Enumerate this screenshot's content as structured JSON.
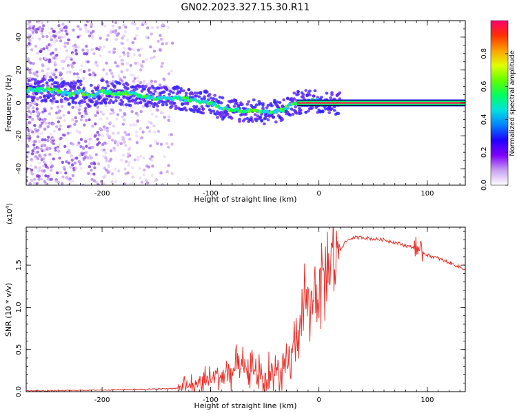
{
  "title": "GN02.2023.327.15.30.R11",
  "chart_data": [
    {
      "type": "heatmap",
      "name": "spectrogram",
      "xlabel": "Height of straight line (km)",
      "ylabel": "Frequency (Hz)",
      "xlim": [
        -270,
        135
      ],
      "ylim": [
        -50,
        50
      ],
      "xticks": [
        -200,
        -100,
        0,
        100
      ],
      "xticklabels": [
        "-200",
        "-100",
        "0",
        "100"
      ],
      "yticks": [
        -40,
        -20,
        0,
        20,
        40
      ],
      "yticklabels": [
        "-40",
        "-20",
        "0",
        "20",
        "40"
      ],
      "ridge": {
        "x": [
          -265,
          -250,
          -240,
          -230,
          -220,
          -210,
          -200,
          -190,
          -180,
          -170,
          -160,
          -150,
          -140,
          -130,
          -120,
          -110,
          -100,
          -90,
          -80,
          -70,
          -60,
          -50,
          -45,
          -40,
          -35,
          -30,
          -20,
          -10,
          -5,
          0,
          5,
          10,
          20,
          50,
          100,
          135
        ],
        "y": [
          8,
          8,
          7,
          5,
          7,
          4,
          7,
          6,
          6,
          5,
          4,
          3,
          3,
          3,
          2,
          1,
          0,
          -3,
          -4,
          -5,
          -5,
          -6,
          -6,
          -5,
          -5,
          -3,
          0,
          1,
          2,
          1,
          0,
          0,
          0,
          0,
          0,
          0
        ]
      },
      "colorbar": {
        "label": "Normalized spectral amplitude",
        "ticks": [
          0.0,
          0.2,
          0.4,
          0.6,
          0.8
        ],
        "ticklabels": [
          "0.0",
          "0.2",
          "0.4",
          "0.6",
          "0.8"
        ],
        "range": [
          0,
          1
        ],
        "colors": [
          "#ffffff",
          "#c8a0f0",
          "#8000ff",
          "#2000ff",
          "#0080ff",
          "#00e0e0",
          "#00ff60",
          "#60ff00",
          "#e0ff00",
          "#ffa000",
          "#ff3000",
          "#ff0070"
        ]
      }
    },
    {
      "type": "line",
      "name": "snr",
      "xlabel": "Height of straight line (km)",
      "ylabel": "SNR (10 * v/v)",
      "scale_label": "(x10",
      "scale_exp": "4",
      "scale_close": ")",
      "xlim": [
        -270,
        135
      ],
      "ylim": [
        0,
        1.95
      ],
      "xticks": [
        -200,
        -100,
        0,
        100
      ],
      "xticklabels": [
        "-200",
        "-100",
        "0",
        "100"
      ],
      "yticks": [
        0.0,
        0.5,
        1.0,
        1.5
      ],
      "yticklabels": [
        "0.0",
        "0.5",
        "1.0",
        "1.5"
      ],
      "color": "#e8302a",
      "series": [
        {
          "name": "SNR",
          "x": [
            -270,
            -250,
            -200,
            -150,
            -130,
            -120,
            -110,
            -100,
            -90,
            -80,
            -70,
            -60,
            -50,
            -40,
            -35,
            -30,
            -25,
            -20,
            -15,
            -10,
            -5,
            0,
            5,
            10,
            15,
            20,
            25,
            30,
            40,
            50,
            60,
            70,
            80,
            90,
            100,
            110,
            120,
            135
          ],
          "y": [
            0.01,
            0.01,
            0.02,
            0.03,
            0.04,
            0.06,
            0.1,
            0.15,
            0.2,
            0.28,
            0.25,
            0.22,
            0.2,
            0.2,
            0.25,
            0.3,
            0.45,
            0.7,
            0.9,
            1.0,
            1.15,
            1.25,
            1.4,
            1.5,
            1.6,
            1.7,
            1.78,
            1.82,
            1.83,
            1.81,
            1.8,
            1.77,
            1.73,
            1.7,
            1.62,
            1.58,
            1.53,
            1.45
          ]
        }
      ]
    }
  ]
}
